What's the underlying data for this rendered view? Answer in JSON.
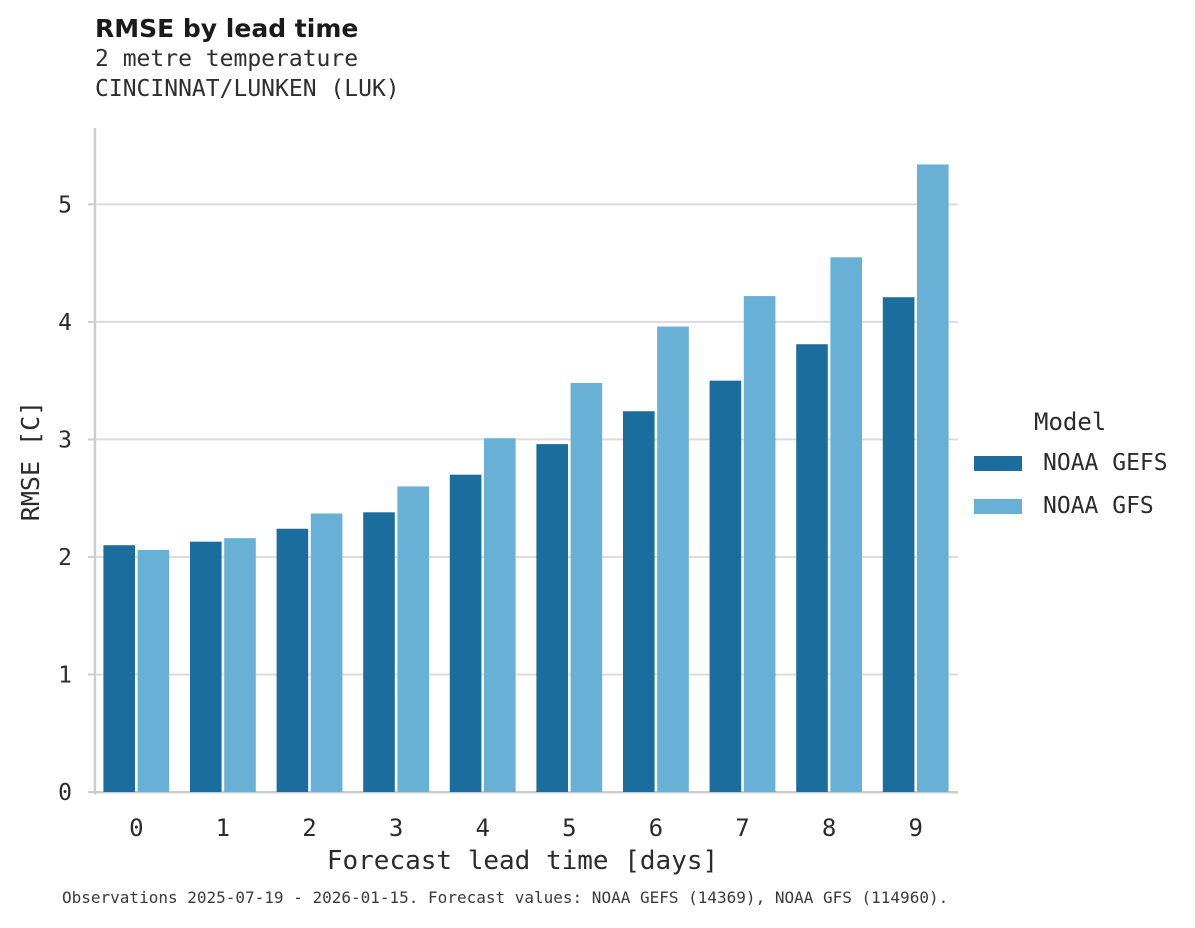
{
  "header": {
    "title": "RMSE by lead time",
    "subtitle_lines": [
      "2 metre temperature",
      "CINCINNAT/LUNKEN (LUK)"
    ]
  },
  "legend": {
    "title": "Model",
    "entries": [
      {
        "label": "NOAA GEFS",
        "color": "#1a6d9c"
      },
      {
        "label": "NOAA GFS",
        "color": "#69b0d7"
      }
    ]
  },
  "footer": {
    "caption": "Observations 2025-07-19 - 2026-01-15. Forecast values: NOAA GEFS (14369), NOAA GFS (114960)."
  },
  "colors": {
    "series_dark": "#1a6d9c",
    "series_light": "#69b0d7",
    "gridline": "#dcdcdc",
    "axis_line": "#cdcdcd",
    "text": "#2b2b2b"
  },
  "chart_data": {
    "type": "bar",
    "title": "RMSE by lead time",
    "subtitle": "2 metre temperature, CINCINNAT/LUNKEN (LUK)",
    "xlabel": "Forecast lead time [days]",
    "ylabel": "RMSE [C]",
    "categories": [
      "0",
      "1",
      "2",
      "3",
      "4",
      "5",
      "6",
      "7",
      "8",
      "9"
    ],
    "series": [
      {
        "name": "NOAA GEFS",
        "color": "#1a6d9c",
        "values": [
          2.1,
          2.13,
          2.24,
          2.38,
          2.7,
          2.96,
          3.24,
          3.5,
          3.81,
          4.21
        ]
      },
      {
        "name": "NOAA GFS",
        "color": "#69b0d7",
        "values": [
          2.06,
          2.16,
          2.37,
          2.6,
          3.01,
          3.48,
          3.96,
          4.22,
          4.55,
          5.34
        ]
      }
    ],
    "ylim": [
      0,
      5.65
    ],
    "yticks": [
      0,
      1,
      2,
      3,
      4,
      5
    ],
    "grid": true,
    "legend_title": "Model",
    "legend_position": "right"
  }
}
